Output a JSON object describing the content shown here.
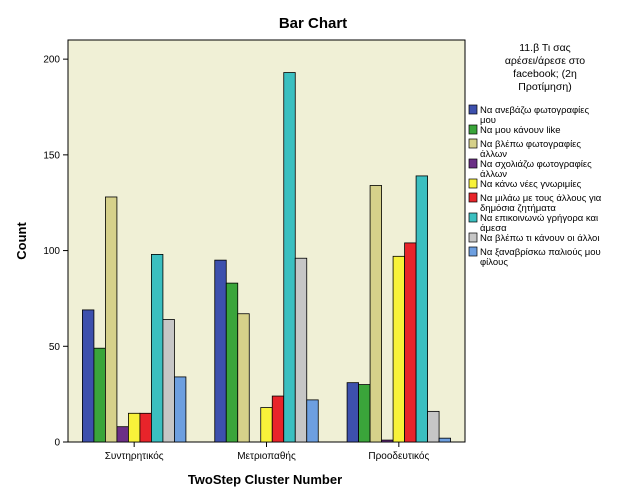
{
  "chart_data": {
    "type": "bar",
    "title": "Bar Chart",
    "xlabel": "TwoStep Cluster Number",
    "ylabel": "Count",
    "ylim": [
      0,
      210
    ],
    "yticks": [
      0,
      50,
      100,
      150,
      200
    ],
    "grid": false,
    "legend_position": "right",
    "legend_title_lines": [
      "11.β Τι σας",
      "αρέσει/άρεσε στο",
      "facebook; (2η",
      "Προτίμηση)"
    ],
    "categories": [
      "Συντηρητικός",
      "Μετριοπαθής",
      "Προοδευτικός"
    ],
    "series": [
      {
        "name": "Να ανεβάζω φωτογραφίες μου",
        "label_lines": [
          "Να ανεβάζω φωτογραφίες",
          "μου"
        ],
        "color": "#3d50ad",
        "values": [
          69,
          95,
          31
        ]
      },
      {
        "name": "Να μου κάνουν like",
        "label_lines": [
          "Να μου κάνουν like"
        ],
        "color": "#3aa53a",
        "values": [
          49,
          83,
          30
        ]
      },
      {
        "name": "Να βλέπω φωτογραφίες άλλων",
        "label_lines": [
          "Να βλέπω φωτογραφίες",
          "άλλων"
        ],
        "color": "#d6d18a",
        "values": [
          128,
          67,
          134
        ]
      },
      {
        "name": "Να σχολιάζω φωτογραφίες άλλων",
        "label_lines": [
          "Να σχολιάζω φωτογραφίες",
          "άλλων"
        ],
        "color": "#6b2f86",
        "values": [
          8,
          0,
          1
        ]
      },
      {
        "name": "Να κάνω νέες γνωριμίες",
        "label_lines": [
          "Να κάνω νέες γνωριμίες"
        ],
        "color": "#f8f23a",
        "values": [
          15,
          18,
          97
        ]
      },
      {
        "name": "Να μιλάω με τους άλλους για δημόσια ζητήματα",
        "label_lines": [
          "Να μιλάω με τους άλλους για",
          "δημόσια ζητήματα"
        ],
        "color": "#e8242a",
        "values": [
          15,
          24,
          104
        ]
      },
      {
        "name": "Να επικοινωνώ γρήγορα και άμεσα",
        "label_lines": [
          "Να επικοινωνώ γρήγορα και",
          "άμεσα"
        ],
        "color": "#3bbfc0",
        "values": [
          98,
          193,
          139
        ]
      },
      {
        "name": "Να βλέπω τι κάνουν οι άλλοι",
        "label_lines": [
          "Να βλέπω τι κάνουν οι άλλοι"
        ],
        "color": "#c6c6c6",
        "values": [
          64,
          96,
          16
        ]
      },
      {
        "name": "Να ξαναβρίσκω παλιούς μου φίλους",
        "label_lines": [
          "Να ξαναβρίσκω παλιούς μου",
          "φίλους"
        ],
        "color": "#6d9fe0",
        "values": [
          34,
          22,
          2
        ]
      }
    ]
  }
}
